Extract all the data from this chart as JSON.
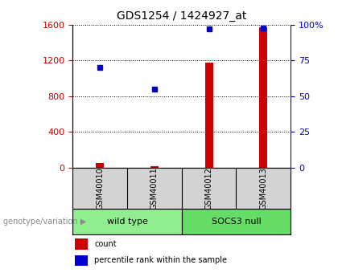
{
  "title": "GDS1254 / 1424927_at",
  "samples": [
    "GSM40010",
    "GSM40011",
    "GSM40012",
    "GSM40013"
  ],
  "counts": [
    50,
    20,
    1180,
    1570
  ],
  "percentiles": [
    70,
    55,
    97,
    98
  ],
  "left_ylim": [
    0,
    1600
  ],
  "left_yticks": [
    0,
    400,
    800,
    1200,
    1600
  ],
  "right_ylim": [
    0,
    100
  ],
  "right_yticks": [
    0,
    25,
    50,
    75,
    100
  ],
  "right_yticklabels": [
    "0",
    "25",
    "50",
    "75",
    "100%"
  ],
  "bar_color": "#cc0000",
  "dot_color": "#0000cc",
  "left_axis_color": "#cc0000",
  "right_axis_color": "#0000cc",
  "groups": [
    {
      "label": "wild type",
      "indices": [
        0,
        1
      ],
      "color": "#90ee90"
    },
    {
      "label": "SOCS3 null",
      "indices": [
        2,
        3
      ],
      "color": "#66dd66"
    }
  ],
  "genotype_label": "genotype/variation",
  "legend_items": [
    {
      "color": "#cc0000",
      "label": "count"
    },
    {
      "color": "#0000cc",
      "label": "percentile rank within the sample"
    }
  ],
  "background_color": "#ffffff",
  "sample_box_color": "#d3d3d3",
  "bar_width": 0.15
}
